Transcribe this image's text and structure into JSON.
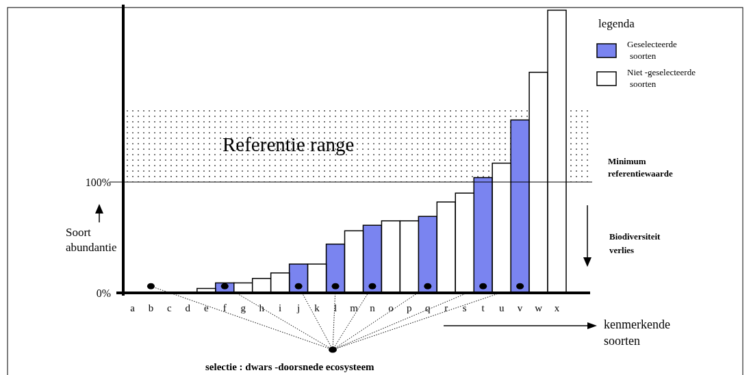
{
  "chart_data": {
    "type": "bar",
    "categories": [
      "a",
      "b",
      "c",
      "d",
      "e",
      "f",
      "g",
      "h",
      "i",
      "j",
      "k",
      "l",
      "m",
      "n",
      "o",
      "p",
      "q",
      "r",
      "s",
      "t",
      "u",
      "v",
      "w",
      "x"
    ],
    "series": [
      {
        "name": "Geselecteerde soorten",
        "color": "#7a84f0",
        "values": [
          null,
          0,
          null,
          null,
          null,
          9,
          null,
          null,
          null,
          26,
          null,
          44,
          null,
          61,
          null,
          null,
          69,
          null,
          null,
          104,
          null,
          156,
          null,
          null
        ]
      },
      {
        "name": "Niet -geselecteerde soorten",
        "color": "#ffffff",
        "values": [
          0,
          null,
          0,
          0,
          4,
          null,
          9,
          13,
          18,
          null,
          26,
          null,
          56,
          null,
          65,
          65,
          null,
          82,
          90,
          null,
          117,
          null,
          199,
          255
        ]
      },
      {
        "type": "scatter",
        "color": "#000000",
        "marker": "circle",
        "x": [
          "b",
          "f",
          "j",
          "l",
          "n",
          "q",
          "t",
          "v"
        ],
        "values": [
          6,
          6,
          6,
          6,
          6,
          6,
          6,
          6
        ]
      }
    ],
    "ylim": [
      0,
      260
    ],
    "yticks": [
      {
        "value": 0,
        "label": "0%"
      },
      {
        "value": 100,
        "label": "100%"
      }
    ],
    "ylabel": "Soort abundantie",
    "xlabel": "kenmerkende soorten",
    "legend_title": "legenda",
    "legend": "top right",
    "bands": [
      {
        "axis": "y",
        "from": 100,
        "to": 168,
        "label": "Referentie range"
      }
    ],
    "ref_lines": [
      {
        "axis": "y",
        "value": 100,
        "label": "Minimum referentiewaarde"
      }
    ],
    "annotations": [
      "Biodiversiteit verlies",
      "selectie : dwars -doorsnede ecosysteem"
    ]
  }
}
